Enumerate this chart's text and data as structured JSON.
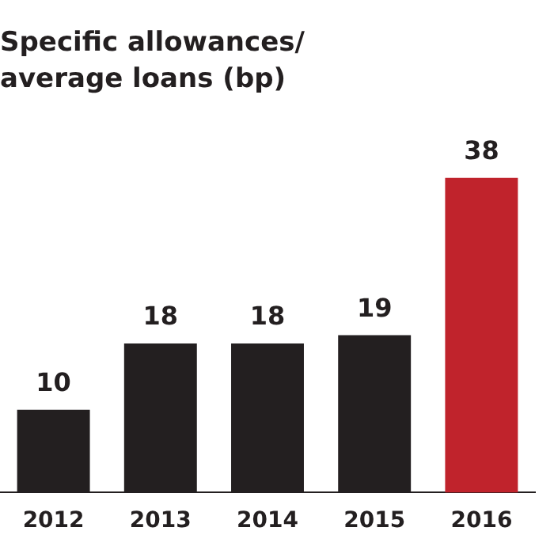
{
  "chart_data": {
    "type": "bar",
    "title": "Specific allowances/\naverage loans (bp)",
    "categories": [
      "2012",
      "2013",
      "2014",
      "2015",
      "2016"
    ],
    "values": [
      10,
      18,
      18,
      19,
      38
    ],
    "colors": [
      "#231f20",
      "#231f20",
      "#231f20",
      "#231f20",
      "#c0232c"
    ],
    "data_labels": true,
    "grid": false,
    "legend": false
  }
}
